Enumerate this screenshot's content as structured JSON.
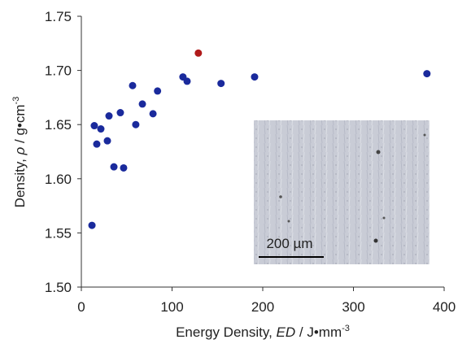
{
  "chart_data": {
    "type": "scatter",
    "x": [
      11.7,
      14.3,
      17,
      21.5,
      28.7,
      30.5,
      35.9,
      43,
      46.6,
      56.5,
      60,
      67.3,
      79,
      84,
      112,
      116.6,
      129,
      154,
      191,
      381
    ],
    "values": [
      1.557,
      1.649,
      1.632,
      1.646,
      1.635,
      1.658,
      1.611,
      1.661,
      1.61,
      1.686,
      1.65,
      1.669,
      1.66,
      1.681,
      1.694,
      1.69,
      1.716,
      1.688,
      1.694,
      1.697
    ],
    "point_colors": [
      "#1a2a9c",
      "#1a2a9c",
      "#1a2a9c",
      "#1a2a9c",
      "#1a2a9c",
      "#1a2a9c",
      "#1a2a9c",
      "#1a2a9c",
      "#1a2a9c",
      "#1a2a9c",
      "#1a2a9c",
      "#1a2a9c",
      "#1a2a9c",
      "#1a2a9c",
      "#1a2a9c",
      "#1a2a9c",
      "#b01a1a",
      "#1a2a9c",
      "#1a2a9c",
      "#1a2a9c"
    ],
    "xlim": [
      0,
      400
    ],
    "xticks": [
      0,
      100,
      200,
      300,
      400
    ],
    "ylim": [
      1.5,
      1.75
    ],
    "yticks": [
      {
        "value": 1.5,
        "label": "1.50"
      },
      {
        "value": 1.55,
        "label": "1.55"
      },
      {
        "value": 1.6,
        "label": "1.60"
      },
      {
        "value": 1.65,
        "label": "1.65"
      },
      {
        "value": 1.7,
        "label": "1.70"
      },
      {
        "value": 1.75,
        "label": "1.75"
      }
    ],
    "xlabel": [
      "Energy Density, ",
      "ED",
      " / J•mm",
      "-3"
    ],
    "ylabel": [
      "Density, ",
      "ρ",
      " / g•cm",
      "-3"
    ],
    "inset_scale_label": "200 µm"
  }
}
